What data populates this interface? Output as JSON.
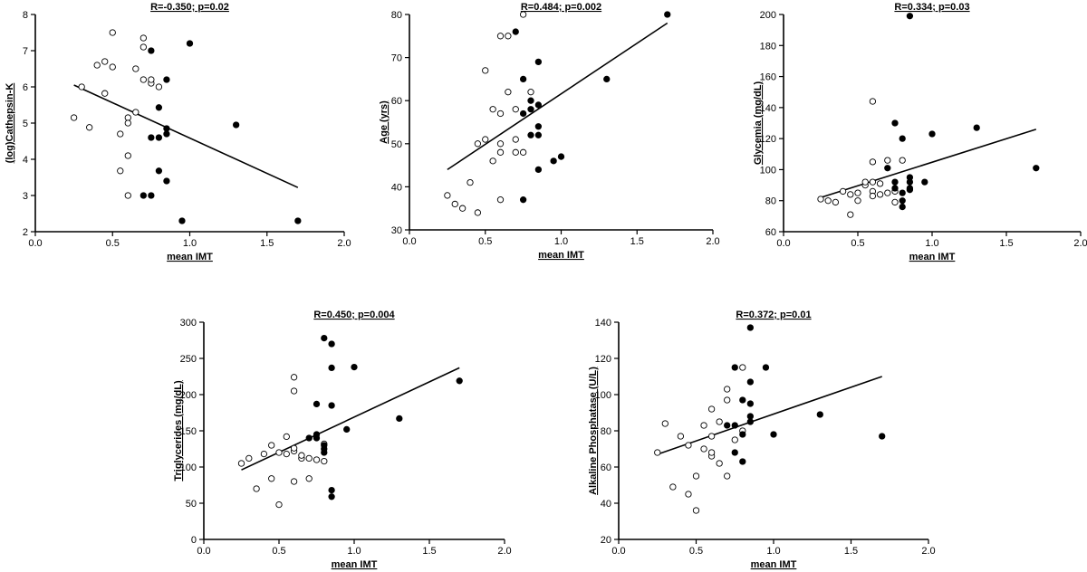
{
  "chart_data": [
    {
      "type": "scatter",
      "title": "R=-0.350; p=0.02",
      "xlabel": "mean IMT",
      "ylabel": "(log)Cathepsin-K",
      "xlim": [
        0.0,
        2.0
      ],
      "ylim": [
        2,
        8
      ],
      "xticks": [
        "0.0",
        "0.5",
        "1.0",
        "1.5",
        "2.0"
      ],
      "yticks": [
        "2",
        "3",
        "4",
        "5",
        "6",
        "7",
        "8"
      ],
      "fit_line": [
        [
          0.25,
          6.05
        ],
        [
          1.7,
          3.22
        ]
      ],
      "series": [
        {
          "marker": "open",
          "points": [
            [
              0.25,
              5.15
            ],
            [
              0.3,
              6.0
            ],
            [
              0.35,
              4.88
            ],
            [
              0.4,
              6.6
            ],
            [
              0.45,
              6.7
            ],
            [
              0.45,
              5.82
            ],
            [
              0.5,
              7.5
            ],
            [
              0.5,
              6.55
            ],
            [
              0.55,
              4.7
            ],
            [
              0.55,
              3.68
            ],
            [
              0.6,
              5.15
            ],
            [
              0.6,
              5.0
            ],
            [
              0.6,
              4.1
            ],
            [
              0.6,
              3.0
            ],
            [
              0.65,
              6.5
            ],
            [
              0.65,
              5.3
            ],
            [
              0.7,
              7.35
            ],
            [
              0.7,
              7.1
            ],
            [
              0.7,
              6.2
            ],
            [
              0.75,
              6.1
            ],
            [
              0.75,
              6.2
            ],
            [
              0.8,
              6.0
            ]
          ]
        },
        {
          "marker": "filled",
          "points": [
            [
              0.7,
              3.0
            ],
            [
              0.75,
              3.0
            ],
            [
              0.75,
              7.0
            ],
            [
              0.75,
              4.6
            ],
            [
              0.8,
              5.43
            ],
            [
              0.8,
              4.6
            ],
            [
              0.8,
              3.68
            ],
            [
              0.85,
              6.2
            ],
            [
              0.85,
              4.85
            ],
            [
              0.85,
              4.7
            ],
            [
              0.85,
              3.4
            ],
            [
              0.95,
              2.3
            ],
            [
              1.0,
              7.2
            ],
            [
              1.3,
              4.95
            ],
            [
              1.7,
              2.3
            ]
          ]
        }
      ]
    },
    {
      "type": "scatter",
      "title": "R=0.484; p=0.002",
      "xlabel": "mean IMT",
      "ylabel": "Age (yrs)",
      "xlim": [
        0.0,
        2.0
      ],
      "ylim": [
        30,
        80
      ],
      "xticks": [
        "0.0",
        "0.5",
        "1.0",
        "1.5",
        "2.0"
      ],
      "yticks": [
        "30",
        "40",
        "50",
        "60",
        "70",
        "80"
      ],
      "fit_line": [
        [
          0.25,
          44.0
        ],
        [
          1.7,
          78.0
        ]
      ],
      "series": [
        {
          "marker": "open",
          "points": [
            [
              0.25,
              38
            ],
            [
              0.3,
              36
            ],
            [
              0.35,
              35
            ],
            [
              0.4,
              41
            ],
            [
              0.45,
              34
            ],
            [
              0.45,
              50
            ],
            [
              0.5,
              51
            ],
            [
              0.5,
              67
            ],
            [
              0.55,
              58
            ],
            [
              0.55,
              46
            ],
            [
              0.6,
              37
            ],
            [
              0.6,
              57
            ],
            [
              0.6,
              50
            ],
            [
              0.6,
              48
            ],
            [
              0.6,
              75
            ],
            [
              0.65,
              75
            ],
            [
              0.65,
              62
            ],
            [
              0.7,
              58
            ],
            [
              0.7,
              51
            ],
            [
              0.7,
              48
            ],
            [
              0.75,
              48
            ],
            [
              0.75,
              80
            ],
            [
              0.8,
              62
            ]
          ]
        },
        {
          "marker": "filled",
          "points": [
            [
              0.7,
              76
            ],
            [
              0.75,
              65
            ],
            [
              0.75,
              57
            ],
            [
              0.75,
              37
            ],
            [
              0.8,
              60
            ],
            [
              0.8,
              58
            ],
            [
              0.8,
              52
            ],
            [
              0.85,
              69
            ],
            [
              0.85,
              59
            ],
            [
              0.85,
              54
            ],
            [
              0.85,
              52
            ],
            [
              0.85,
              44
            ],
            [
              0.95,
              46
            ],
            [
              1.0,
              47
            ],
            [
              1.3,
              65
            ],
            [
              1.7,
              80
            ]
          ]
        }
      ]
    },
    {
      "type": "scatter",
      "title": "R=0.334; p=0.03",
      "xlabel": "mean IMT",
      "ylabel": "Glycemia (mg/dL)",
      "xlim": [
        0.0,
        2.0
      ],
      "ylim": [
        60,
        200
      ],
      "xticks": [
        "0.0",
        "0.5",
        "1.0",
        "1.5",
        "2.0"
      ],
      "yticks": [
        "60",
        "80",
        "100",
        "120",
        "140",
        "160",
        "180",
        "200"
      ],
      "fit_line": [
        [
          0.25,
          82.0
        ],
        [
          1.7,
          126.0
        ]
      ],
      "series": [
        {
          "marker": "open",
          "points": [
            [
              0.25,
              81
            ],
            [
              0.3,
              80
            ],
            [
              0.35,
              79
            ],
            [
              0.4,
              86
            ],
            [
              0.45,
              71
            ],
            [
              0.45,
              84
            ],
            [
              0.5,
              85
            ],
            [
              0.5,
              80
            ],
            [
              0.55,
              90
            ],
            [
              0.55,
              92
            ],
            [
              0.6,
              144
            ],
            [
              0.6,
              105
            ],
            [
              0.6,
              92
            ],
            [
              0.6,
              86
            ],
            [
              0.6,
              83
            ],
            [
              0.65,
              84
            ],
            [
              0.65,
              91
            ],
            [
              0.7,
              106
            ],
            [
              0.7,
              85
            ],
            [
              0.75,
              86
            ],
            [
              0.75,
              79
            ],
            [
              0.8,
              106
            ]
          ]
        },
        {
          "marker": "filled",
          "points": [
            [
              0.7,
              101
            ],
            [
              0.75,
              130
            ],
            [
              0.75,
              92
            ],
            [
              0.75,
              88
            ],
            [
              0.8,
              120
            ],
            [
              0.8,
              85
            ],
            [
              0.8,
              80
            ],
            [
              0.8,
              76
            ],
            [
              0.85,
              199
            ],
            [
              0.85,
              95
            ],
            [
              0.85,
              92
            ],
            [
              0.85,
              88
            ],
            [
              0.85,
              87
            ],
            [
              0.95,
              92
            ],
            [
              1.0,
              123
            ],
            [
              1.3,
              127
            ],
            [
              1.7,
              101
            ]
          ]
        }
      ]
    },
    {
      "type": "scatter",
      "title": "R=0.450; p=0.004",
      "xlabel": "mean IMT",
      "ylabel": "Triglycerides (mg/dL)",
      "xlim": [
        0.0,
        2.0
      ],
      "ylim": [
        0,
        300
      ],
      "xticks": [
        "0.0",
        "0.5",
        "1.0",
        "1.5",
        "2.0"
      ],
      "yticks": [
        "0",
        "50",
        "100",
        "150",
        "200",
        "250",
        "300"
      ],
      "fit_line": [
        [
          0.25,
          96.0
        ],
        [
          1.7,
          237.0
        ]
      ],
      "series": [
        {
          "marker": "open",
          "points": [
            [
              0.25,
              105
            ],
            [
              0.3,
              112
            ],
            [
              0.35,
              70
            ],
            [
              0.4,
              118
            ],
            [
              0.45,
              84
            ],
            [
              0.45,
              130
            ],
            [
              0.5,
              48
            ],
            [
              0.5,
              120
            ],
            [
              0.55,
              118
            ],
            [
              0.55,
              142
            ],
            [
              0.6,
              122
            ],
            [
              0.6,
              80
            ],
            [
              0.6,
              205
            ],
            [
              0.6,
              224
            ],
            [
              0.6,
              126
            ],
            [
              0.65,
              112
            ],
            [
              0.65,
              116
            ],
            [
              0.7,
              84
            ],
            [
              0.7,
              112
            ],
            [
              0.75,
              110
            ],
            [
              0.8,
              108
            ],
            [
              0.8,
              132
            ]
          ]
        },
        {
          "marker": "filled",
          "points": [
            [
              0.7,
              140
            ],
            [
              0.75,
              145
            ],
            [
              0.75,
              140
            ],
            [
              0.75,
              187
            ],
            [
              0.8,
              130
            ],
            [
              0.8,
              125
            ],
            [
              0.8,
              120
            ],
            [
              0.8,
              278
            ],
            [
              0.85,
              270
            ],
            [
              0.85,
              237
            ],
            [
              0.85,
              185
            ],
            [
              0.85,
              68
            ],
            [
              0.85,
              59
            ],
            [
              0.95,
              152
            ],
            [
              1.0,
              238
            ],
            [
              1.3,
              167
            ],
            [
              1.7,
              219
            ]
          ]
        }
      ]
    },
    {
      "type": "scatter",
      "title": "R=0.372; p=0.01",
      "xlabel": "mean IMT",
      "ylabel": "Alkaline Phosphatase (U/L)",
      "xlim": [
        0.0,
        2.0
      ],
      "ylim": [
        20,
        140
      ],
      "xticks": [
        "0.0",
        "0.5",
        "1.0",
        "1.5",
        "2.0"
      ],
      "yticks": [
        "20",
        "40",
        "60",
        "80",
        "100",
        "120",
        "140"
      ],
      "fit_line": [
        [
          0.25,
          67.0
        ],
        [
          1.7,
          110.0
        ]
      ],
      "series": [
        {
          "marker": "open",
          "points": [
            [
              0.25,
              68
            ],
            [
              0.3,
              84
            ],
            [
              0.35,
              49
            ],
            [
              0.4,
              77
            ],
            [
              0.45,
              45
            ],
            [
              0.45,
              72
            ],
            [
              0.5,
              55
            ],
            [
              0.5,
              36
            ],
            [
              0.55,
              83
            ],
            [
              0.55,
              70
            ],
            [
              0.6,
              66
            ],
            [
              0.6,
              77
            ],
            [
              0.6,
              92
            ],
            [
              0.6,
              68
            ],
            [
              0.65,
              62
            ],
            [
              0.65,
              85
            ],
            [
              0.7,
              103
            ],
            [
              0.7,
              97
            ],
            [
              0.7,
              55
            ],
            [
              0.75,
              75
            ],
            [
              0.8,
              115
            ],
            [
              0.8,
              80
            ]
          ]
        },
        {
          "marker": "filled",
          "points": [
            [
              0.7,
              83
            ],
            [
              0.75,
              115
            ],
            [
              0.75,
              83
            ],
            [
              0.75,
              68
            ],
            [
              0.8,
              97
            ],
            [
              0.8,
              78
            ],
            [
              0.8,
              63
            ],
            [
              0.85,
              137
            ],
            [
              0.85,
              107
            ],
            [
              0.85,
              95
            ],
            [
              0.85,
              88
            ],
            [
              0.85,
              85
            ],
            [
              0.95,
              115
            ],
            [
              1.0,
              78
            ],
            [
              1.3,
              89
            ],
            [
              1.7,
              77
            ]
          ]
        }
      ]
    }
  ]
}
